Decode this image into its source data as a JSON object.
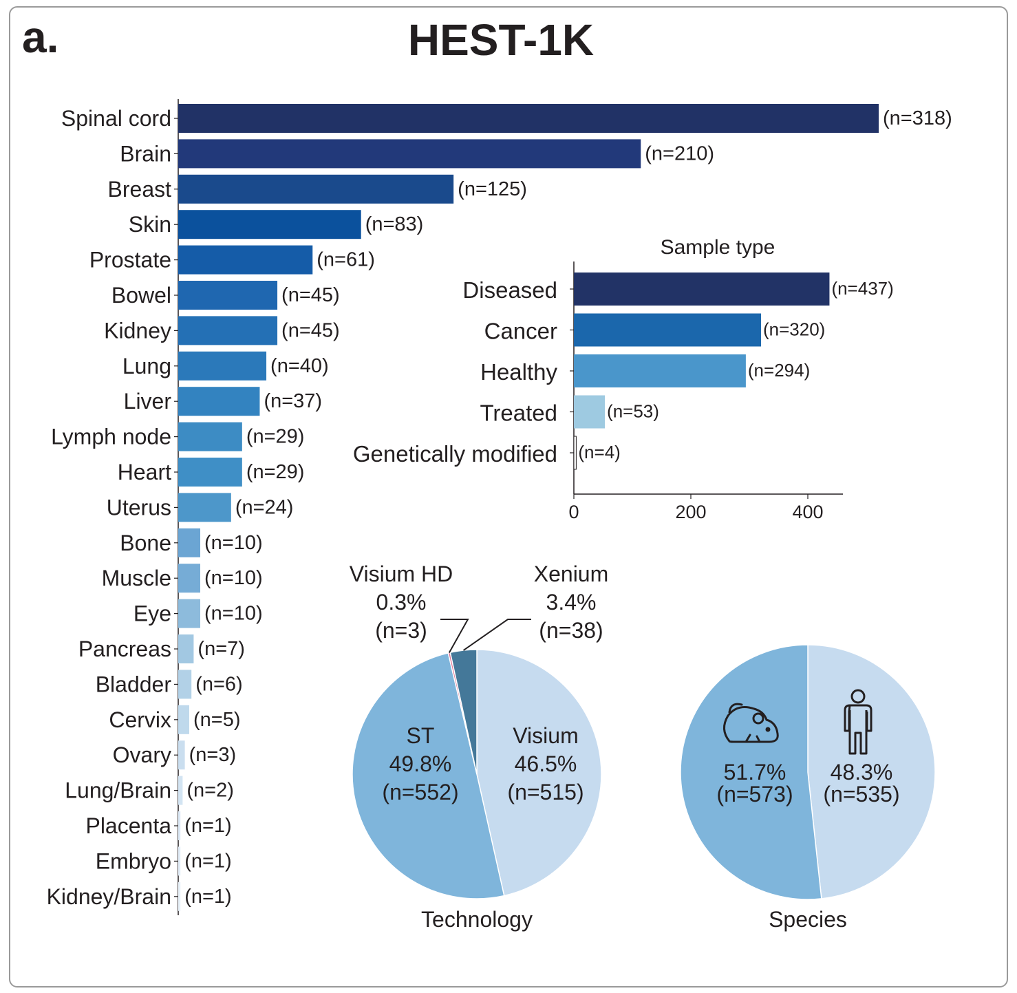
{
  "header": {
    "panel_label": "a.",
    "title": "HEST-1K"
  },
  "chart_data": [
    {
      "type": "bar",
      "orientation": "horizontal",
      "title": "",
      "categories": [
        "Spinal cord",
        "Brain",
        "Breast",
        "Skin",
        "Prostate",
        "Bowel",
        "Kidney",
        "Lung",
        "Liver",
        "Lymph node",
        "Heart",
        "Uterus",
        "Bone",
        "Muscle",
        "Eye",
        "Pancreas",
        "Bladder",
        "Cervix",
        "Ovary",
        "Lung/Brain",
        "Placenta",
        "Embryo",
        "Kidney/Brain"
      ],
      "values": [
        318,
        210,
        125,
        83,
        61,
        45,
        45,
        40,
        37,
        29,
        29,
        24,
        10,
        10,
        10,
        7,
        6,
        5,
        3,
        2,
        1,
        1,
        1
      ],
      "labels": [
        "(n=318)",
        "(n=210)",
        "(n=125)",
        "(n=83)",
        "(n=61)",
        "(n=45)",
        "(n=45)",
        "(n=40)",
        "(n=37)",
        "(n=29)",
        "(n=29)",
        "(n=24)",
        "(n=10)",
        "(n=10)",
        "(n=10)",
        "(n=7)",
        "(n=6)",
        "(n=5)",
        "(n=3)",
        "(n=2)",
        "(n=1)",
        "(n=1)",
        "(n=1)"
      ],
      "colors": [
        "#213266",
        "#22397a",
        "#1a4a8c",
        "#0b519d",
        "#155ca8",
        "#1f67b0",
        "#2470b5",
        "#2b79ba",
        "#3383c0",
        "#3d8cc4",
        "#3f8fc6",
        "#4d97ca",
        "#6ba5d3",
        "#76acd6",
        "#8dbbdc",
        "#a2c8e2",
        "#b2d1e7",
        "#bfd9ec",
        "#cadeef",
        "#d3e4f2",
        "#dce9f5",
        "#e2edf7",
        "#e8f1f8"
      ]
    },
    {
      "type": "bar",
      "orientation": "horizontal",
      "title": "Sample type",
      "categories": [
        "Diseased",
        "Cancer",
        "Healthy",
        "Treated",
        "Genetically modified"
      ],
      "values": [
        437,
        320,
        294,
        53,
        4
      ],
      "labels": [
        "(n=437)",
        "(n=320)",
        "(n=294)",
        "(n=53)",
        "(n=4)"
      ],
      "colors": [
        "#223366",
        "#1b67ac",
        "#4a96cb",
        "#9ecae1",
        "#ffffff"
      ],
      "x_ticks": [
        "0",
        "200",
        "400"
      ],
      "xlim": [
        0,
        460
      ]
    },
    {
      "type": "pie",
      "title": "Technology",
      "slices": [
        {
          "name": "Visium",
          "pct": "46.5%",
          "n": "(n=515)",
          "value": 515,
          "color": "#c6dbef"
        },
        {
          "name": "ST",
          "pct": "49.8%",
          "n": "(n=552)",
          "value": 552,
          "color": "#7fb5db"
        },
        {
          "name": "Visium HD",
          "pct": "0.3%",
          "n": "(n=3)",
          "value": 3,
          "color": "#e37b9b"
        },
        {
          "name": "Xenium",
          "pct": "3.4%",
          "n": "(n=38)",
          "value": 38,
          "color": "#447899"
        }
      ]
    },
    {
      "type": "pie",
      "title": "Species",
      "slices": [
        {
          "name": "human",
          "icon": "human-icon",
          "pct": "48.3%",
          "n": "(n=535)",
          "value": 535,
          "color": "#c6dbef"
        },
        {
          "name": "mouse",
          "icon": "mouse-icon",
          "pct": "51.7%",
          "n": "(n=573)",
          "value": 573,
          "color": "#7fb5db"
        }
      ]
    }
  ]
}
